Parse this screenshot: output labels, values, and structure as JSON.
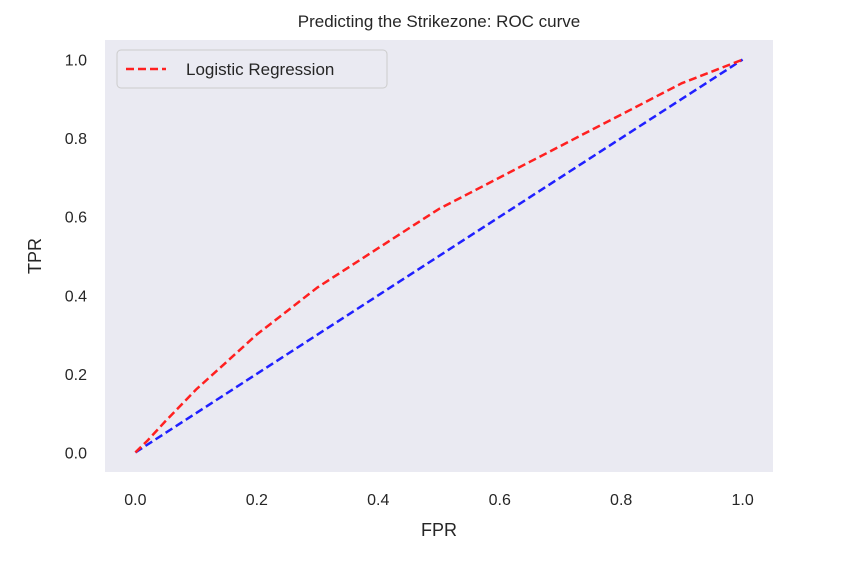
{
  "chart_data": {
    "type": "line",
    "title": "Predicting the Strikezone: ROC curve",
    "xlabel": "FPR",
    "ylabel": "TPR",
    "xlim": [
      -0.05,
      1.05
    ],
    "ylim": [
      -0.05,
      1.05
    ],
    "xticks": [
      0.0,
      0.2,
      0.4,
      0.6,
      0.8,
      1.0
    ],
    "yticks": [
      0.0,
      0.2,
      0.4,
      0.6,
      0.8,
      1.0
    ],
    "xtick_labels": [
      "0.0",
      "0.2",
      "0.4",
      "0.6",
      "0.8",
      "1.0"
    ],
    "ytick_labels": [
      "0.0",
      "0.2",
      "0.4",
      "0.6",
      "0.8",
      "1.0"
    ],
    "grid": false,
    "legend_position": "top-left",
    "series": [
      {
        "name": "Logistic Regression",
        "color": "#ff2020",
        "dash": true,
        "x": [
          0.0,
          0.02,
          0.05,
          0.1,
          0.15,
          0.2,
          0.25,
          0.3,
          0.35,
          0.4,
          0.45,
          0.5,
          0.55,
          0.6,
          0.65,
          0.7,
          0.75,
          0.8,
          0.85,
          0.9,
          0.95,
          1.0
        ],
        "y": [
          0.0,
          0.03,
          0.08,
          0.16,
          0.23,
          0.3,
          0.36,
          0.42,
          0.47,
          0.52,
          0.57,
          0.62,
          0.66,
          0.7,
          0.74,
          0.78,
          0.82,
          0.86,
          0.9,
          0.94,
          0.97,
          1.0
        ]
      },
      {
        "color": "#2020ff",
        "dash": true,
        "x": [
          0.0,
          1.0
        ],
        "y": [
          0.0,
          1.0
        ]
      }
    ]
  }
}
